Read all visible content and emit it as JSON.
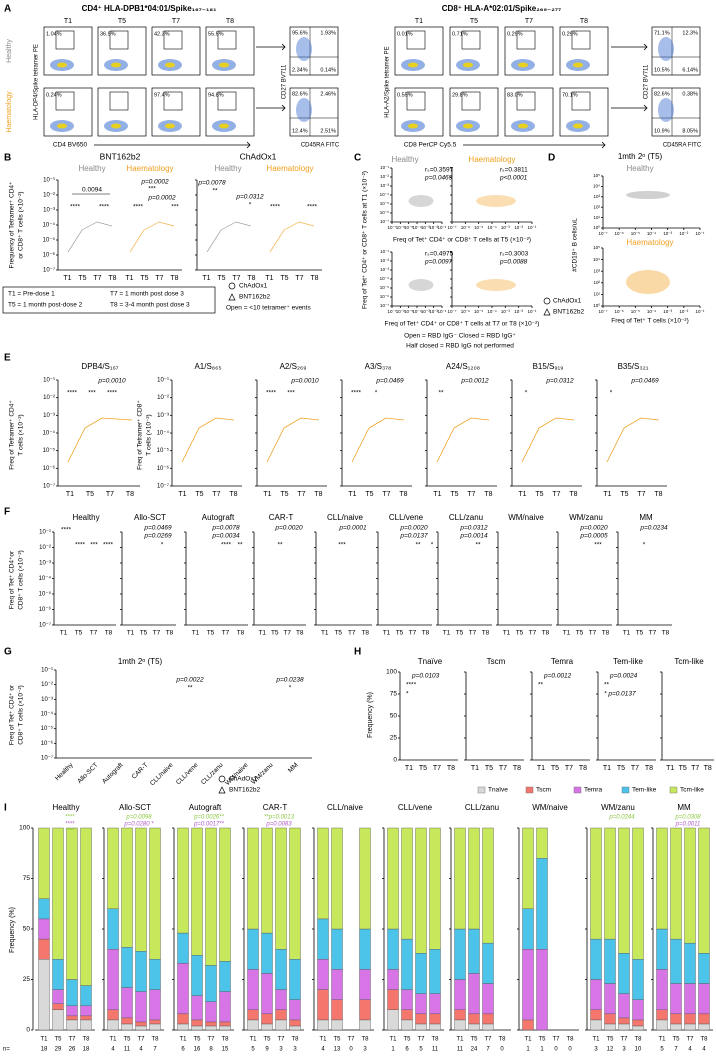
{
  "timepoints": [
    "T1",
    "T5",
    "T7",
    "T8"
  ],
  "cohorts": [
    "Healthy",
    "Haematology"
  ],
  "legend": {
    "chadox1": "ChAdOx1",
    "bnt162b2": "BNT162b2"
  },
  "log_axis": {
    "lim": [
      1e-07,
      0.1
    ],
    "ticks": [
      {
        "value": 0.1,
        "label": "10⁻¹"
      },
      {
        "value": 0.01,
        "label": "10⁻²"
      },
      {
        "value": 0.001,
        "label": "10⁻³"
      },
      {
        "value": 0.0001,
        "label": "10⁻⁴"
      },
      {
        "value": 1e-05,
        "label": "10⁻⁵"
      },
      {
        "value": 1e-06,
        "label": "10⁻⁶"
      },
      {
        "value": 1e-07,
        "label": "10⁻⁷"
      }
    ]
  },
  "count_axis": {
    "lim": [
      1,
      100000
    ],
    "ticks": [
      {
        "value": 100000,
        "label": "10⁵"
      },
      {
        "value": 10000,
        "label": "10⁴"
      },
      {
        "value": 1000,
        "label": "10³"
      },
      {
        "value": 100,
        "label": "10²"
      },
      {
        "value": 10,
        "label": "10¹"
      },
      {
        "value": 1,
        "label": "10⁰"
      }
    ]
  },
  "freq_axis": {
    "lim": [
      0,
      100
    ],
    "ticks": [
      0,
      25,
      50,
      75,
      100
    ]
  },
  "panel_a": {
    "letter": "A",
    "quad_y_label": "CD27 BV711",
    "quad_x_label": "CD45RA FITC",
    "left": {
      "title": "CD4⁺ HLA-DPB1*04:01/Spike₁₆₇₋₁₈₁",
      "y_label": "HLA-DP4/Spike tetramer PE",
      "x_label": "CD4 BV650",
      "gates": [
        [
          "1.04%",
          "36.9%",
          "42.3%",
          "55.5%"
        ],
        [
          "0.24%",
          null,
          "97.4%",
          "94.8%"
        ]
      ],
      "quadrants": [
        [
          "95.6%",
          "1.93%",
          "2.34%",
          "0.14%"
        ],
        [
          "82.6%",
          "2.46%",
          "12.4%",
          "2.51%"
        ]
      ]
    },
    "right": {
      "title": "CD8⁺ HLA-A*02:01/Spike₂₆₉₋₂₇₇",
      "y_label": "HLA-A2/Spike tetramer PE",
      "x_label": "CD8 PerCP Cy5.5",
      "gates": [
        [
          "0.01%",
          "0.71%",
          "0.29%",
          "0.29%"
        ],
        [
          "0.55%",
          "29.8%",
          "83.0%",
          "70.1%"
        ]
      ],
      "quadrants": [
        [
          "71.1%",
          "12.3%",
          "10.5%",
          "6.14%"
        ],
        [
          "82.6%",
          "0.38%",
          "10.9%",
          "8.05%"
        ]
      ]
    }
  },
  "panel_b": {
    "letter": "B",
    "vaccines": [
      "BNT162b2",
      "ChAdOx1"
    ],
    "y_label": [
      "Frequency of Tetramer⁺ CD4⁺",
      "or CD8⁺ T cells (×10⁻²)"
    ],
    "annotations": [
      "p=0.0002",
      "0.0094",
      "***",
      "p=0.0002",
      "****",
      "****",
      "****",
      "***",
      "p=0.0078",
      "**",
      "p=0.0312",
      "*",
      "****",
      "****"
    ],
    "key": [
      "T1 = Pre-dose 1",
      "T5 = 1 month post-dose 2",
      "T7 = 1 month post dose 3",
      "T8 = 3-4 month post dose 3"
    ],
    "note": "Open = <10 tetramer⁺ events"
  },
  "panel_c": {
    "letter": "C",
    "stats": [
      [
        "rₛ=0.3597",
        "p=0.0469"
      ],
      [
        "rₛ=0.3811",
        "p<0.0001"
      ],
      [
        "rₛ=0.4975",
        "p=0.0097"
      ],
      [
        "rₛ=0.3003",
        "p=0.0088"
      ]
    ],
    "y_label": [
      "Freq of Tet⁺ CD4⁺ or CD8⁺ T cells at T1 (×10⁻²)"
    ],
    "x_label_top": "Freq of Tet⁺ CD4⁺ or CD8⁺ T cells at T5 (×10⁻²)",
    "x_label_bottom": "Freq of Tet⁺ CD4⁺ or CD8⁺ T cells at T7 or T8 (×10⁻²)",
    "notes": [
      "Open = RBD IgG⁻  Closed = RBD IgG⁺",
      "Half closed = RBD IgG not performed"
    ]
  },
  "panel_d": {
    "letter": "D",
    "title": "1mth 2ᵒ (T5)",
    "y_label": "#CD19⁺ B cells/uL",
    "x_label": "Freq of Tet⁺ T cells (×10⁻²)"
  },
  "panel_e": {
    "letter": "E",
    "titles": [
      "DPB4/S₁₆₇",
      "A1/S₈₆₅",
      "A2/S₂₆₉",
      "A3/S₃₇₈",
      "A24/S₁₂₀₈",
      "B15/S₉₁₉",
      "B35/S₃₂₁"
    ],
    "y_labels": [
      [
        "Freq of Tetramer⁺ CD4⁺",
        "T cells (×10⁻²)"
      ],
      [
        "Freq of Tetramer⁺ CD8⁺",
        "T cells (×10⁻²)"
      ]
    ],
    "annotations": [
      [
        "p=0.0010",
        "****",
        "***",
        "****"
      ],
      [],
      [
        "p=0.0010",
        "****",
        "***"
      ],
      [
        "p=0.0469",
        "****",
        "*"
      ],
      [
        "p=0.0012",
        "**"
      ],
      [
        "p=0.0312",
        "*"
      ],
      [
        "p=0.0469",
        "*"
      ]
    ]
  },
  "panel_f": {
    "letter": "F",
    "groups": [
      "Healthy",
      "Allo-SCT",
      "Autograft",
      "CAR-T",
      "CLL/naive",
      "CLL/vene",
      "CLL/zanu",
      "WM/naive",
      "WM/zanu",
      "MM"
    ],
    "y_label": [
      "Freq of Tet⁺ CD4⁺or",
      "CD8⁺ T cells (×10⁻²)"
    ],
    "annotations": [
      [
        "****",
        "****",
        "***",
        "****"
      ],
      [
        "p=0.0469",
        "p=0.0269",
        "*"
      ],
      [
        "p=0.0078",
        "p=0.0034",
        "****",
        "**"
      ],
      [
        "p=0.0020",
        "**"
      ],
      [
        "p=0.0001",
        "***"
      ],
      [
        "p=0.0020",
        "p=0.0137",
        "**",
        "*"
      ],
      [
        "p=0.0312",
        "p=0.0014",
        "**"
      ],
      [],
      [
        "p=0.0020",
        "p=0.0005",
        "***"
      ],
      [
        "p=0.0234",
        "*"
      ]
    ]
  },
  "panel_g": {
    "letter": "G",
    "title": "1mth 2ᵒ (T5)",
    "y_label": [
      "Freq of Tet⁺ CD4⁺ or",
      "CD8⁺ T cells (×10⁻²)"
    ],
    "annotations": [
      "p=0.0022",
      "**",
      "p=0.0238",
      "*"
    ]
  },
  "panel_h": {
    "letter": "H",
    "y_label": "Frequency (%)",
    "subsets": [
      {
        "name": "Tnaïve",
        "color": "#d9d9d9"
      },
      {
        "name": "Tscm",
        "color": "#f4766d"
      },
      {
        "name": "Temra",
        "color": "#d774e6"
      },
      {
        "name": "Tem-like",
        "color": "#4cc4ea"
      },
      {
        "name": "Tcm-like",
        "color": "#c8e85c"
      }
    ],
    "annotations": [
      [
        "p=0.0103",
        "****",
        "*"
      ],
      [],
      [
        "p=0.0012",
        "**"
      ],
      [
        "p=0.0024",
        "**",
        "* p=0.0137"
      ],
      []
    ]
  },
  "panel_i": {
    "letter": "I",
    "y_label": "Frequency (%)",
    "n_label": "n=",
    "groups": [
      {
        "name": "Healthy",
        "n": [
          "18",
          "29",
          "26",
          "18"
        ],
        "stacks": [
          [
            35,
            10,
            10,
            10,
            35
          ],
          [
            10,
            3,
            7,
            15,
            65
          ],
          [
            5,
            2,
            5,
            13,
            75
          ],
          [
            5,
            2,
            5,
            10,
            78
          ]
        ]
      },
      {
        "name": "Allo-SCT",
        "n": [
          "4",
          "11",
          "4",
          "7"
        ],
        "stacks": [
          [
            5,
            5,
            30,
            20,
            40
          ],
          [
            3,
            3,
            15,
            20,
            59
          ],
          [
            2,
            2,
            15,
            20,
            61
          ],
          [
            3,
            2,
            15,
            15,
            65
          ]
        ]
      },
      {
        "name": "Autograft",
        "n": [
          "6",
          "16",
          "8",
          "15"
        ],
        "stacks": [
          [
            3,
            5,
            25,
            15,
            52
          ],
          [
            2,
            3,
            12,
            20,
            63
          ],
          [
            2,
            2,
            10,
            18,
            68
          ],
          [
            2,
            2,
            15,
            15,
            66
          ]
        ]
      },
      {
        "name": "CAR-T",
        "n": [
          "5",
          "9",
          "3",
          "3"
        ],
        "stacks": [
          [
            5,
            5,
            20,
            20,
            50
          ],
          [
            3,
            5,
            20,
            20,
            52
          ],
          [
            5,
            5,
            10,
            20,
            60
          ],
          [
            2,
            3,
            10,
            20,
            65
          ]
        ]
      },
      {
        "name": "CLL/naive",
        "n": [
          "4",
          "13",
          "0",
          "3"
        ],
        "stacks": [
          [
            5,
            15,
            15,
            20,
            45
          ],
          [
            5,
            10,
            15,
            20,
            50
          ],
          null,
          [
            5,
            10,
            15,
            20,
            50
          ]
        ]
      },
      {
        "name": "CLL/vene",
        "n": [
          "1",
          "6",
          "5",
          "11"
        ],
        "stacks": [
          [
            10,
            10,
            10,
            20,
            50
          ],
          [
            5,
            5,
            10,
            25,
            55
          ],
          [
            3,
            5,
            10,
            20,
            62
          ],
          [
            3,
            5,
            10,
            22,
            60
          ]
        ]
      },
      {
        "name": "CLL/zanu",
        "n": [
          "11",
          "24",
          "7",
          "0"
        ],
        "stacks": [
          [
            5,
            5,
            15,
            25,
            50
          ],
          [
            3,
            5,
            20,
            22,
            50
          ],
          [
            3,
            5,
            15,
            20,
            57
          ],
          null
        ]
      },
      {
        "name": "WM/naive",
        "n": [
          "1",
          "1",
          "0",
          "0"
        ],
        "stacks": [
          [
            0,
            5,
            35,
            20,
            40
          ],
          [
            0,
            0,
            40,
            45,
            15
          ],
          null,
          null
        ]
      },
      {
        "name": "WM/zanu",
        "n": [
          "3",
          "12",
          "3",
          "10"
        ],
        "stacks": [
          [
            5,
            5,
            15,
            20,
            55
          ],
          [
            3,
            5,
            15,
            22,
            55
          ],
          [
            3,
            3,
            12,
            20,
            62
          ],
          [
            2,
            3,
            10,
            20,
            65
          ]
        ]
      },
      {
        "name": "MM",
        "n": [
          "5",
          "7",
          "4",
          "4"
        ],
        "stacks": [
          [
            5,
            5,
            20,
            20,
            50
          ],
          [
            3,
            5,
            15,
            22,
            55
          ],
          [
            3,
            5,
            15,
            20,
            57
          ],
          [
            3,
            5,
            15,
            15,
            62
          ]
        ]
      }
    ],
    "annotations": [
      [
        "****",
        "****",
        "****"
      ],
      [
        "p=0.0098",
        "p=0.0280 *"
      ],
      [
        "p=0.0026**",
        "p=0.0017**"
      ],
      [
        "**p=0.0013",
        "p=0.0083"
      ],
      [],
      [],
      [],
      [],
      [
        "p=0.0244"
      ],
      [
        "p=0.0308",
        "p=0.0011"
      ]
    ]
  }
}
